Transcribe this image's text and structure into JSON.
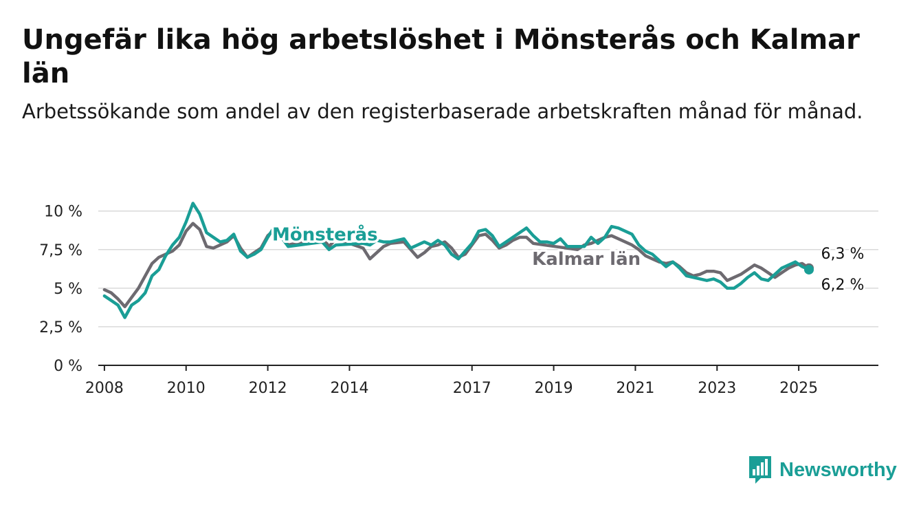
{
  "title": "Ungefär lika hög arbetslöshet i Mönsterås och Kalmar län",
  "subtitle": "Arbetssökande som andel av den registerbaserade arbetskraften månad för månad.",
  "brand": {
    "name": "Newsworthy",
    "icon": "bar-chart-speech-bubble-icon",
    "color": "#1a9e96"
  },
  "chart_data": {
    "type": "line",
    "x_ticks": [
      "2008",
      "2010",
      "2012",
      "2014",
      "2017",
      "2019",
      "2021",
      "2023",
      "2025"
    ],
    "y_ticks": [
      "0 %",
      "2,5 %",
      "5 %",
      "7,5 %",
      "10 %"
    ],
    "ylim": [
      0,
      10.3
    ],
    "grid": true,
    "legend": "inline labels on lines",
    "series": [
      {
        "name": "Kalmar län",
        "color": "#6d6a70",
        "end_label": "6,3 %",
        "points": [
          [
            "2008-01",
            4.9
          ],
          [
            "2008-03",
            4.7
          ],
          [
            "2008-05",
            4.3
          ],
          [
            "2008-07",
            3.8
          ],
          [
            "2008-09",
            4.4
          ],
          [
            "2008-11",
            5.0
          ],
          [
            "2009-01",
            5.8
          ],
          [
            "2009-03",
            6.6
          ],
          [
            "2009-05",
            7.0
          ],
          [
            "2009-07",
            7.2
          ],
          [
            "2009-09",
            7.4
          ],
          [
            "2009-11",
            7.8
          ],
          [
            "2010-01",
            8.7
          ],
          [
            "2010-03",
            9.2
          ],
          [
            "2010-05",
            8.8
          ],
          [
            "2010-07",
            7.7
          ],
          [
            "2010-09",
            7.6
          ],
          [
            "2010-11",
            7.8
          ],
          [
            "2011-01",
            8.0
          ],
          [
            "2011-03",
            8.4
          ],
          [
            "2011-05",
            7.6
          ],
          [
            "2011-07",
            7.0
          ],
          [
            "2011-09",
            7.3
          ],
          [
            "2011-11",
            7.6
          ],
          [
            "2012-01",
            8.4
          ],
          [
            "2012-03",
            8.8
          ],
          [
            "2012-05",
            8.4
          ],
          [
            "2012-07",
            7.8
          ],
          [
            "2013-05",
            8.3
          ],
          [
            "2013-07",
            7.7
          ],
          [
            "2013-09",
            8.2
          ],
          [
            "2014-05",
            7.6
          ],
          [
            "2014-07",
            6.9
          ],
          [
            "2014-09",
            7.3
          ],
          [
            "2014-11",
            7.7
          ],
          [
            "2015-01",
            7.9
          ],
          [
            "2015-05",
            8.0
          ],
          [
            "2015-07",
            7.5
          ],
          [
            "2015-09",
            7.0
          ],
          [
            "2015-11",
            7.3
          ],
          [
            "2016-01",
            7.7
          ],
          [
            "2016-03",
            7.8
          ],
          [
            "2016-05",
            8.0
          ],
          [
            "2016-07",
            7.6
          ],
          [
            "2016-09",
            7.0
          ],
          [
            "2016-11",
            7.2
          ],
          [
            "2017-01",
            7.8
          ],
          [
            "2017-03",
            8.4
          ],
          [
            "2017-05",
            8.5
          ],
          [
            "2017-07",
            8.1
          ],
          [
            "2017-09",
            7.6
          ],
          [
            "2017-11",
            7.8
          ],
          [
            "2018-01",
            8.1
          ],
          [
            "2018-03",
            8.3
          ],
          [
            "2018-05",
            8.3
          ],
          [
            "2018-07",
            7.9
          ],
          [
            "2019-08",
            7.5
          ],
          [
            "2019-10",
            7.8
          ],
          [
            "2019-12",
            7.9
          ],
          [
            "2020-02",
            8.1
          ],
          [
            "2020-04",
            8.3
          ],
          [
            "2020-06",
            8.4
          ],
          [
            "2020-08",
            8.2
          ],
          [
            "2020-10",
            8.0
          ],
          [
            "2020-12",
            7.8
          ],
          [
            "2021-02",
            7.5
          ],
          [
            "2021-04",
            7.1
          ],
          [
            "2021-06",
            6.9
          ],
          [
            "2021-08",
            6.7
          ],
          [
            "2021-10",
            6.6
          ],
          [
            "2021-12",
            6.7
          ],
          [
            "2022-02",
            6.4
          ],
          [
            "2022-04",
            6.0
          ],
          [
            "2022-06",
            5.8
          ],
          [
            "2022-08",
            5.9
          ],
          [
            "2022-10",
            6.1
          ],
          [
            "2022-12",
            6.1
          ],
          [
            "2023-02",
            6.0
          ],
          [
            "2023-04",
            5.5
          ],
          [
            "2023-06",
            5.7
          ],
          [
            "2023-08",
            5.9
          ],
          [
            "2023-10",
            6.2
          ],
          [
            "2023-12",
            6.5
          ],
          [
            "2024-02",
            6.3
          ],
          [
            "2024-04",
            6.0
          ],
          [
            "2024-06",
            5.7
          ],
          [
            "2024-08",
            6.0
          ],
          [
            "2024-10",
            6.3
          ],
          [
            "2024-12",
            6.5
          ],
          [
            "2025-02",
            6.6
          ],
          [
            "2025-04",
            6.3
          ]
        ]
      },
      {
        "name": "Mönsterås",
        "color": "#1a9e96",
        "end_label": "6,2 %",
        "points": [
          [
            "2008-01",
            4.5
          ],
          [
            "2008-03",
            4.2
          ],
          [
            "2008-05",
            3.9
          ],
          [
            "2008-07",
            3.1
          ],
          [
            "2008-09",
            3.9
          ],
          [
            "2008-11",
            4.2
          ],
          [
            "2009-01",
            4.7
          ],
          [
            "2009-03",
            5.8
          ],
          [
            "2009-05",
            6.2
          ],
          [
            "2009-07",
            7.1
          ],
          [
            "2009-09",
            7.8
          ],
          [
            "2009-11",
            8.3
          ],
          [
            "2010-01",
            9.3
          ],
          [
            "2010-03",
            10.5
          ],
          [
            "2010-05",
            9.8
          ],
          [
            "2010-07",
            8.6
          ],
          [
            "2010-09",
            8.3
          ],
          [
            "2010-11",
            8.0
          ],
          [
            "2011-01",
            8.1
          ],
          [
            "2011-03",
            8.5
          ],
          [
            "2011-05",
            7.4
          ],
          [
            "2011-07",
            7.0
          ],
          [
            "2011-09",
            7.2
          ],
          [
            "2011-11",
            7.5
          ],
          [
            "2012-01",
            8.3
          ],
          [
            "2012-03",
            9.0
          ],
          [
            "2012-05",
            8.3
          ],
          [
            "2012-07",
            7.7
          ],
          [
            "2013-05",
            8.0
          ],
          [
            "2013-07",
            7.5
          ],
          [
            "2013-09",
            7.8
          ],
          [
            "2014-05",
            7.9
          ],
          [
            "2014-07",
            7.8
          ],
          [
            "2014-09",
            8.1
          ],
          [
            "2014-11",
            8.0
          ],
          [
            "2015-01",
            8.0
          ],
          [
            "2015-05",
            8.2
          ],
          [
            "2015-07",
            7.6
          ],
          [
            "2015-09",
            7.8
          ],
          [
            "2015-11",
            8.0
          ],
          [
            "2016-01",
            7.8
          ],
          [
            "2016-03",
            8.1
          ],
          [
            "2016-05",
            7.8
          ],
          [
            "2016-07",
            7.2
          ],
          [
            "2016-09",
            6.9
          ],
          [
            "2016-11",
            7.4
          ],
          [
            "2017-01",
            7.9
          ],
          [
            "2017-03",
            8.7
          ],
          [
            "2017-05",
            8.8
          ],
          [
            "2017-07",
            8.4
          ],
          [
            "2017-09",
            7.7
          ],
          [
            "2017-11",
            8.0
          ],
          [
            "2018-01",
            8.3
          ],
          [
            "2018-03",
            8.6
          ],
          [
            "2018-05",
            8.9
          ],
          [
            "2018-07",
            8.4
          ],
          [
            "2018-09",
            8.0
          ],
          [
            "2018-11",
            8.0
          ],
          [
            "2019-01",
            7.9
          ],
          [
            "2019-03",
            8.2
          ],
          [
            "2019-05",
            7.7
          ],
          [
            "2019-10",
            7.7
          ],
          [
            "2019-12",
            8.3
          ],
          [
            "2020-02",
            7.9
          ],
          [
            "2020-04",
            8.3
          ],
          [
            "2020-06",
            9.0
          ],
          [
            "2020-08",
            8.9
          ],
          [
            "2020-10",
            8.7
          ],
          [
            "2020-12",
            8.5
          ],
          [
            "2021-02",
            7.8
          ],
          [
            "2021-04",
            7.4
          ],
          [
            "2021-06",
            7.2
          ],
          [
            "2021-08",
            6.8
          ],
          [
            "2021-10",
            6.4
          ],
          [
            "2021-12",
            6.7
          ],
          [
            "2022-02",
            6.3
          ],
          [
            "2022-04",
            5.8
          ],
          [
            "2022-06",
            5.7
          ],
          [
            "2022-08",
            5.6
          ],
          [
            "2022-10",
            5.5
          ],
          [
            "2022-12",
            5.6
          ],
          [
            "2023-02",
            5.4
          ],
          [
            "2023-04",
            5.0
          ],
          [
            "2023-06",
            5.0
          ],
          [
            "2023-08",
            5.3
          ],
          [
            "2023-10",
            5.7
          ],
          [
            "2023-12",
            6.0
          ],
          [
            "2024-02",
            5.6
          ],
          [
            "2024-04",
            5.5
          ],
          [
            "2024-06",
            5.9
          ],
          [
            "2024-08",
            6.3
          ],
          [
            "2024-10",
            6.5
          ],
          [
            "2024-12",
            6.7
          ],
          [
            "2025-02",
            6.4
          ],
          [
            "2025-04",
            6.2
          ]
        ]
      }
    ]
  }
}
